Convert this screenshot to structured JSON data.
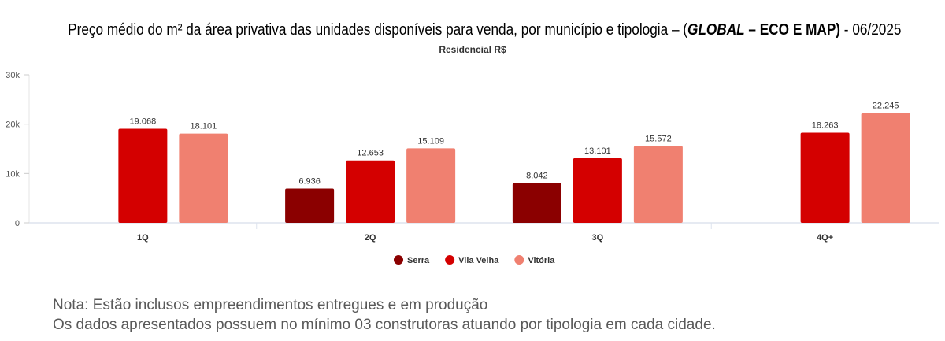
{
  "title": {
    "main": "Preço médio do m² da área privativa das unidades disponíveis para venda, por município e tipologia – (",
    "italic": "GLOBAL",
    "bold_rest": " – ECO E MAP)",
    "suffix": " - 06/2025"
  },
  "chart_data": {
    "type": "bar",
    "title": "Preço médio do m² da área privativa das unidades disponíveis para venda, por município e tipologia – (GLOBAL – ECO E MAP) - 06/2025",
    "subtitle": "Residencial R$",
    "categories": [
      "1Q",
      "2Q",
      "3Q",
      "4Q+"
    ],
    "series": [
      {
        "name": "Serra",
        "color": "#8b0000",
        "values": [
          null,
          6936,
          8042,
          null
        ],
        "labels": [
          null,
          "6.936",
          "8.042",
          null
        ]
      },
      {
        "name": "Vila Velha",
        "color": "#d40000",
        "values": [
          19068,
          12653,
          13101,
          18263
        ],
        "labels": [
          "19.068",
          "12.653",
          "13.101",
          "18.263"
        ]
      },
      {
        "name": "Vitória",
        "color": "#f08070",
        "values": [
          18101,
          15109,
          15572,
          22245
        ],
        "labels": [
          "18.101",
          "15.109",
          "15.572",
          "22.245"
        ]
      }
    ],
    "ylim": [
      0,
      30000
    ],
    "yticks": [
      {
        "v": 0,
        "label": "0"
      },
      {
        "v": 10000,
        "label": "10k"
      },
      {
        "v": 20000,
        "label": "20k"
      },
      {
        "v": 30000,
        "label": "30k"
      }
    ],
    "grid": false,
    "legend": "bottom"
  },
  "notes": [
    "Nota:  Estão inclusos empreendimentos entregues e em produção",
    "Os dados apresentados possuem no mínimo 03 construtoras atuando por tipologia em cada cidade."
  ]
}
